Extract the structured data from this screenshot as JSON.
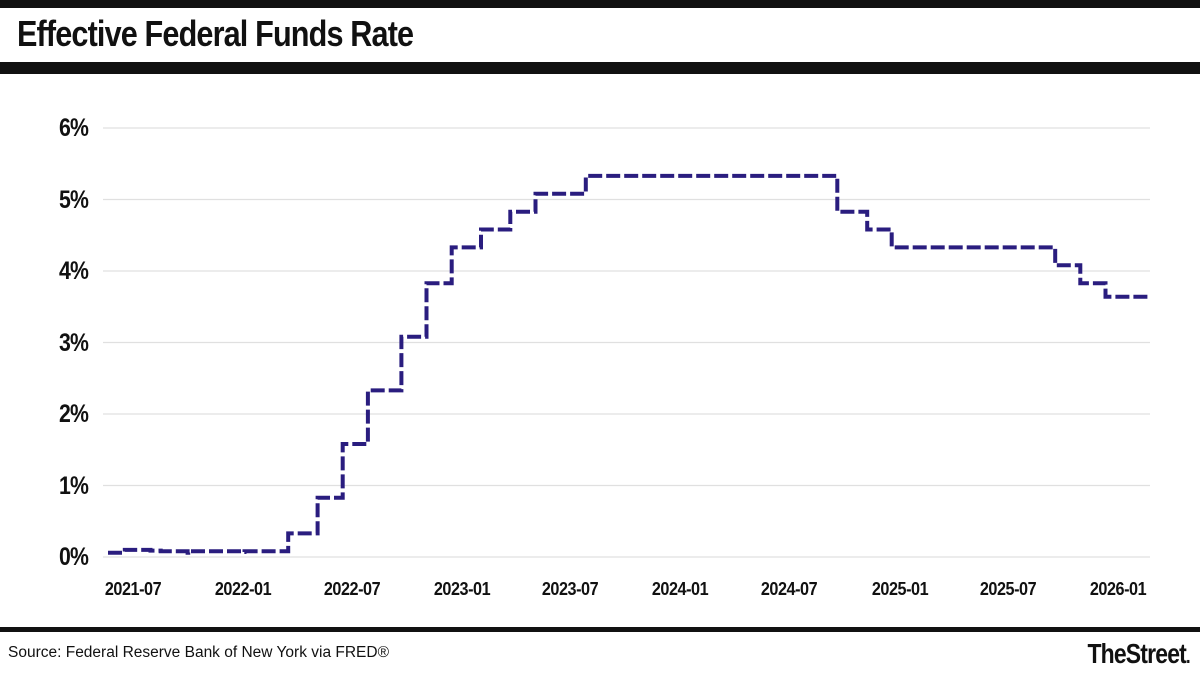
{
  "header": {
    "title": "Effective Federal Funds Rate"
  },
  "footer": {
    "source": "Source: Federal Reserve Bank of New York via FRED®",
    "brand": "TheStreet",
    "brand_suffix": "."
  },
  "chart_data": {
    "type": "line",
    "line_style": "dashed-step",
    "title": "Effective Federal Funds Rate",
    "series": [
      {
        "name": "Effective Federal Funds Rate (%)",
        "points": [
          [
            "2021-05-20",
            0.06
          ],
          [
            "2021-06-17",
            0.1
          ],
          [
            "2021-07-30",
            0.09
          ],
          [
            "2021-08-16",
            0.08
          ],
          [
            "2021-09-30",
            0.06
          ],
          [
            "2021-10-01",
            0.08
          ],
          [
            "2021-12-31",
            0.07
          ],
          [
            "2022-01-03",
            0.08
          ],
          [
            "2022-03-17",
            0.33
          ],
          [
            "2022-05-05",
            0.83
          ],
          [
            "2022-06-16",
            1.58
          ],
          [
            "2022-07-28",
            2.33
          ],
          [
            "2022-09-22",
            3.08
          ],
          [
            "2022-11-03",
            3.83
          ],
          [
            "2022-12-15",
            4.33
          ],
          [
            "2023-02-02",
            4.58
          ],
          [
            "2023-03-23",
            4.83
          ],
          [
            "2023-05-04",
            5.08
          ],
          [
            "2023-07-27",
            5.33
          ],
          [
            "2024-09-19",
            4.83
          ],
          [
            "2024-11-08",
            4.58
          ],
          [
            "2024-12-19",
            4.33
          ],
          [
            "2025-09-18",
            4.08
          ],
          [
            "2025-10-30",
            3.83
          ],
          [
            "2025-12-11",
            3.64
          ]
        ]
      }
    ],
    "x_domain": [
      "2021-05-20",
      "2026-02-20"
    ],
    "ylim": [
      0,
      6
    ],
    "yticks": [
      "0%",
      "1%",
      "2%",
      "3%",
      "4%",
      "5%",
      "6%"
    ],
    "xticks": [
      "2021-07",
      "2022-01",
      "2022-07",
      "2023-01",
      "2023-07",
      "2024-01",
      "2024-07",
      "2025-01",
      "2025-07",
      "2026-01"
    ],
    "grid": "horizontal-only",
    "legend": "none",
    "line_color": "#2a1d7f",
    "grid_color": "#e0e0e0",
    "bar_color": "#111111"
  }
}
